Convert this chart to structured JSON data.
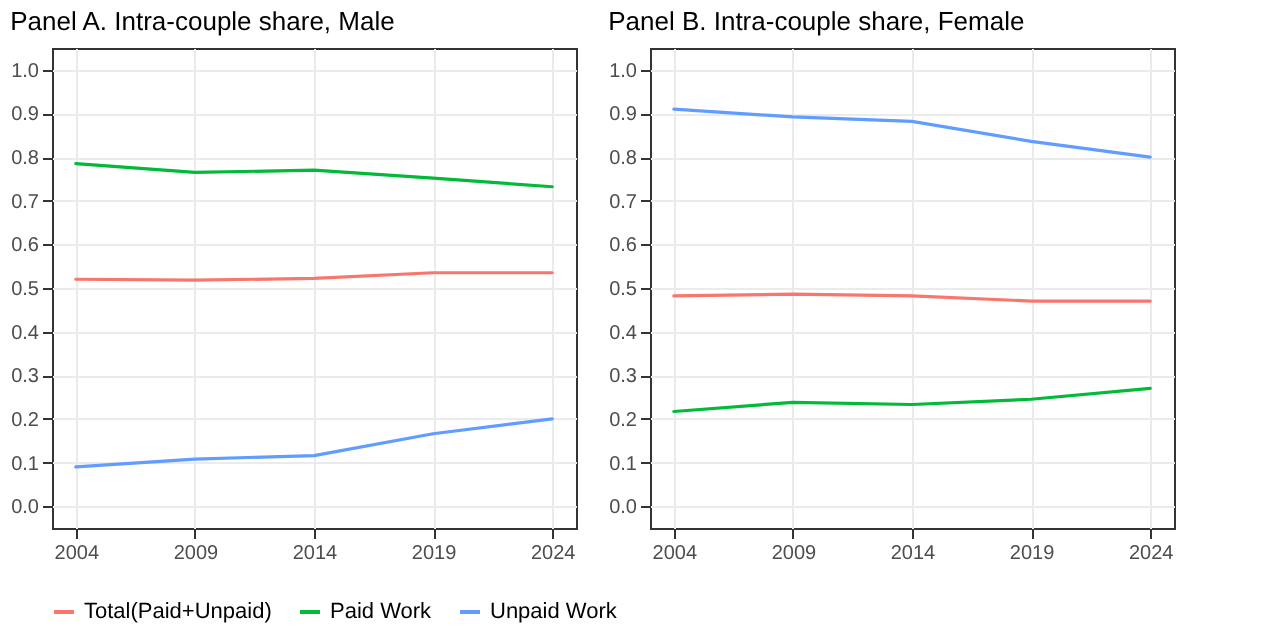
{
  "chart_data": [
    {
      "type": "line",
      "title": "Panel A. Intra-couple share, Male",
      "x": [
        2004,
        2009,
        2014,
        2019,
        2024
      ],
      "xlim": [
        2003,
        2025
      ],
      "xticks": [
        2004,
        2009,
        2014,
        2019,
        2024
      ],
      "ylim": [
        -0.05,
        1.05
      ],
      "yticks": [
        {
          "value": 0,
          "label": "0.0"
        },
        {
          "value": 0.1,
          "label": "0.1"
        },
        {
          "value": 0.2,
          "label": "0.2"
        },
        {
          "value": 0.3,
          "label": "0.3"
        },
        {
          "value": 0.4,
          "label": "0.4"
        },
        {
          "value": 0.5,
          "label": "0.5"
        },
        {
          "value": 0.6,
          "label": "0.6"
        },
        {
          "value": 0.7,
          "label": "0.7"
        },
        {
          "value": 0.8,
          "label": "0.8"
        },
        {
          "value": 0.9,
          "label": "0.9"
        },
        {
          "value": 1,
          "label": "1.0"
        }
      ],
      "grid": true,
      "legend": "bottom",
      "line_style": "solid",
      "series": [
        {
          "name": "Total(Paid+Unpaid)",
          "color": "#f8766d",
          "values": [
            0.52,
            0.518,
            0.522,
            0.535,
            0.535
          ]
        },
        {
          "name": "Paid Work",
          "color": "#00ba38",
          "values": [
            0.785,
            0.765,
            0.77,
            0.752,
            0.732
          ]
        },
        {
          "name": "Unpaid Work",
          "color": "#619cff",
          "values": [
            0.09,
            0.108,
            0.116,
            0.166,
            0.2
          ]
        }
      ]
    },
    {
      "type": "line",
      "title": "Panel B. Intra-couple share, Female",
      "x": [
        2004,
        2009,
        2014,
        2019,
        2024
      ],
      "xlim": [
        2003,
        2025
      ],
      "xticks": [
        2004,
        2009,
        2014,
        2019,
        2024
      ],
      "ylim": [
        -0.05,
        1.05
      ],
      "yticks": [
        {
          "value": 0,
          "label": "0.0"
        },
        {
          "value": 0.1,
          "label": "0.1"
        },
        {
          "value": 0.2,
          "label": "0.2"
        },
        {
          "value": 0.3,
          "label": "0.3"
        },
        {
          "value": 0.4,
          "label": "0.4"
        },
        {
          "value": 0.5,
          "label": "0.5"
        },
        {
          "value": 0.6,
          "label": "0.6"
        },
        {
          "value": 0.7,
          "label": "0.7"
        },
        {
          "value": 0.8,
          "label": "0.8"
        },
        {
          "value": 0.9,
          "label": "0.9"
        },
        {
          "value": 1,
          "label": "1.0"
        }
      ],
      "grid": true,
      "legend": "bottom",
      "line_style": "solid",
      "series": [
        {
          "name": "Total(Paid+Unpaid)",
          "color": "#f8766d",
          "values": [
            0.482,
            0.486,
            0.482,
            0.47,
            0.47
          ]
        },
        {
          "name": "Paid Work",
          "color": "#00ba38",
          "values": [
            0.217,
            0.238,
            0.233,
            0.245,
            0.27
          ]
        },
        {
          "name": "Unpaid Work",
          "color": "#619cff",
          "values": [
            0.91,
            0.892,
            0.882,
            0.836,
            0.8
          ]
        }
      ]
    }
  ]
}
